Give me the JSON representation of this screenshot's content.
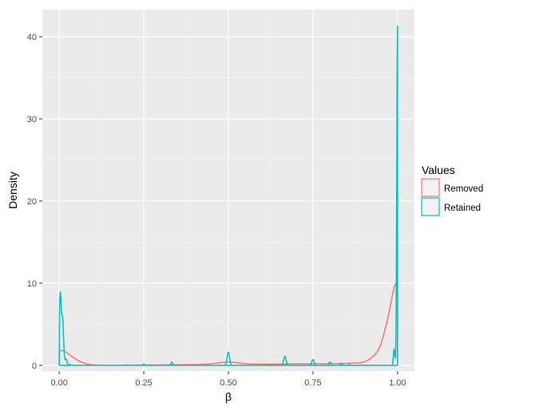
{
  "chart_data": {
    "type": "line",
    "title": "",
    "xlabel": "β",
    "ylabel": "Density",
    "xlim": [
      -0.05,
      1.05
    ],
    "ylim": [
      -0.7,
      43.3
    ],
    "x_ticks": [
      "0.00",
      "0.25",
      "0.50",
      "0.75",
      "1.00"
    ],
    "x_tick_values": [
      0,
      0.25,
      0.5,
      0.75,
      1.0
    ],
    "y_ticks": [
      "0",
      "10",
      "20",
      "30",
      "40"
    ],
    "y_tick_values": [
      0,
      10,
      20,
      30,
      40
    ],
    "grid": true,
    "panel_background": "#ebebeb",
    "legend": {
      "title": "Values",
      "position": "right",
      "entries": [
        "Removed",
        "Retained"
      ]
    },
    "series": [
      {
        "name": "Removed",
        "color": "#f8766d",
        "x": [
          0.0,
          0.01,
          0.02,
          0.04,
          0.06,
          0.08,
          0.1,
          0.15,
          0.2,
          0.3,
          0.4,
          0.45,
          0.48,
          0.5,
          0.52,
          0.55,
          0.6,
          0.65,
          0.7,
          0.75,
          0.8,
          0.85,
          0.9,
          0.93,
          0.95,
          0.97,
          0.98,
          0.99,
          1.0
        ],
        "values": [
          1.8,
          1.8,
          1.6,
          1.0,
          0.5,
          0.2,
          0.05,
          0.0,
          0.02,
          0.05,
          0.1,
          0.2,
          0.35,
          0.4,
          0.35,
          0.2,
          0.15,
          0.15,
          0.2,
          0.2,
          0.2,
          0.25,
          0.4,
          1.2,
          2.5,
          5.5,
          7.5,
          9.5,
          10.2
        ]
      },
      {
        "name": "Retained",
        "color": "#00bfc4",
        "x": [
          0.0,
          0.003,
          0.01,
          0.02,
          0.03,
          0.04,
          0.2,
          0.25,
          0.333,
          0.4,
          0.5,
          0.6,
          0.667,
          0.75,
          0.8,
          0.833,
          0.857,
          0.98,
          0.99,
          1.0
        ],
        "values": [
          0.0,
          8.7,
          5.5,
          0.8,
          0.1,
          0.0,
          0.05,
          0.15,
          0.4,
          0.05,
          1.6,
          0.05,
          1.1,
          0.7,
          0.4,
          0.25,
          0.1,
          0.0,
          2.0,
          41.3
        ],
        "peak_widths": [
          0,
          0.004,
          0.004,
          0.004,
          0.004,
          0.004,
          0.004,
          0.004,
          0.004,
          0.004,
          0.005,
          0.004,
          0.005,
          0.005,
          0.004,
          0.004,
          0.004,
          0,
          0.003,
          0.003
        ]
      }
    ]
  }
}
